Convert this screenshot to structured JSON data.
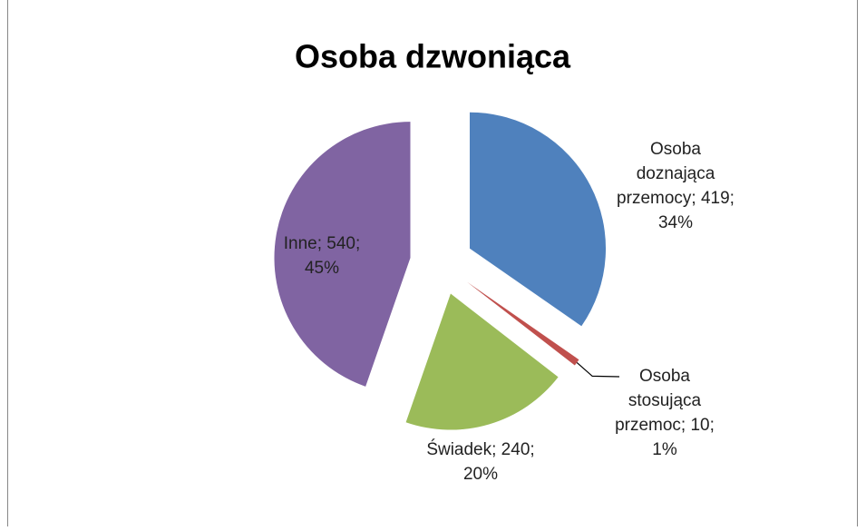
{
  "chart_data": {
    "type": "pie",
    "title": "Osoba dzwoniąca",
    "values": [
      419,
      10,
      240,
      540
    ],
    "value_labels": [
      "Osoba doznająca przemocy; 419; 34%",
      "Osoba stosująca przemoc; 10; 1%",
      "Świadek; 240; 20%",
      "Inne; 540; 45%"
    ],
    "colors": [
      "#4f81bd",
      "#c0504d",
      "#9bbb59",
      "#8064a2"
    ],
    "exploded": true
  }
}
